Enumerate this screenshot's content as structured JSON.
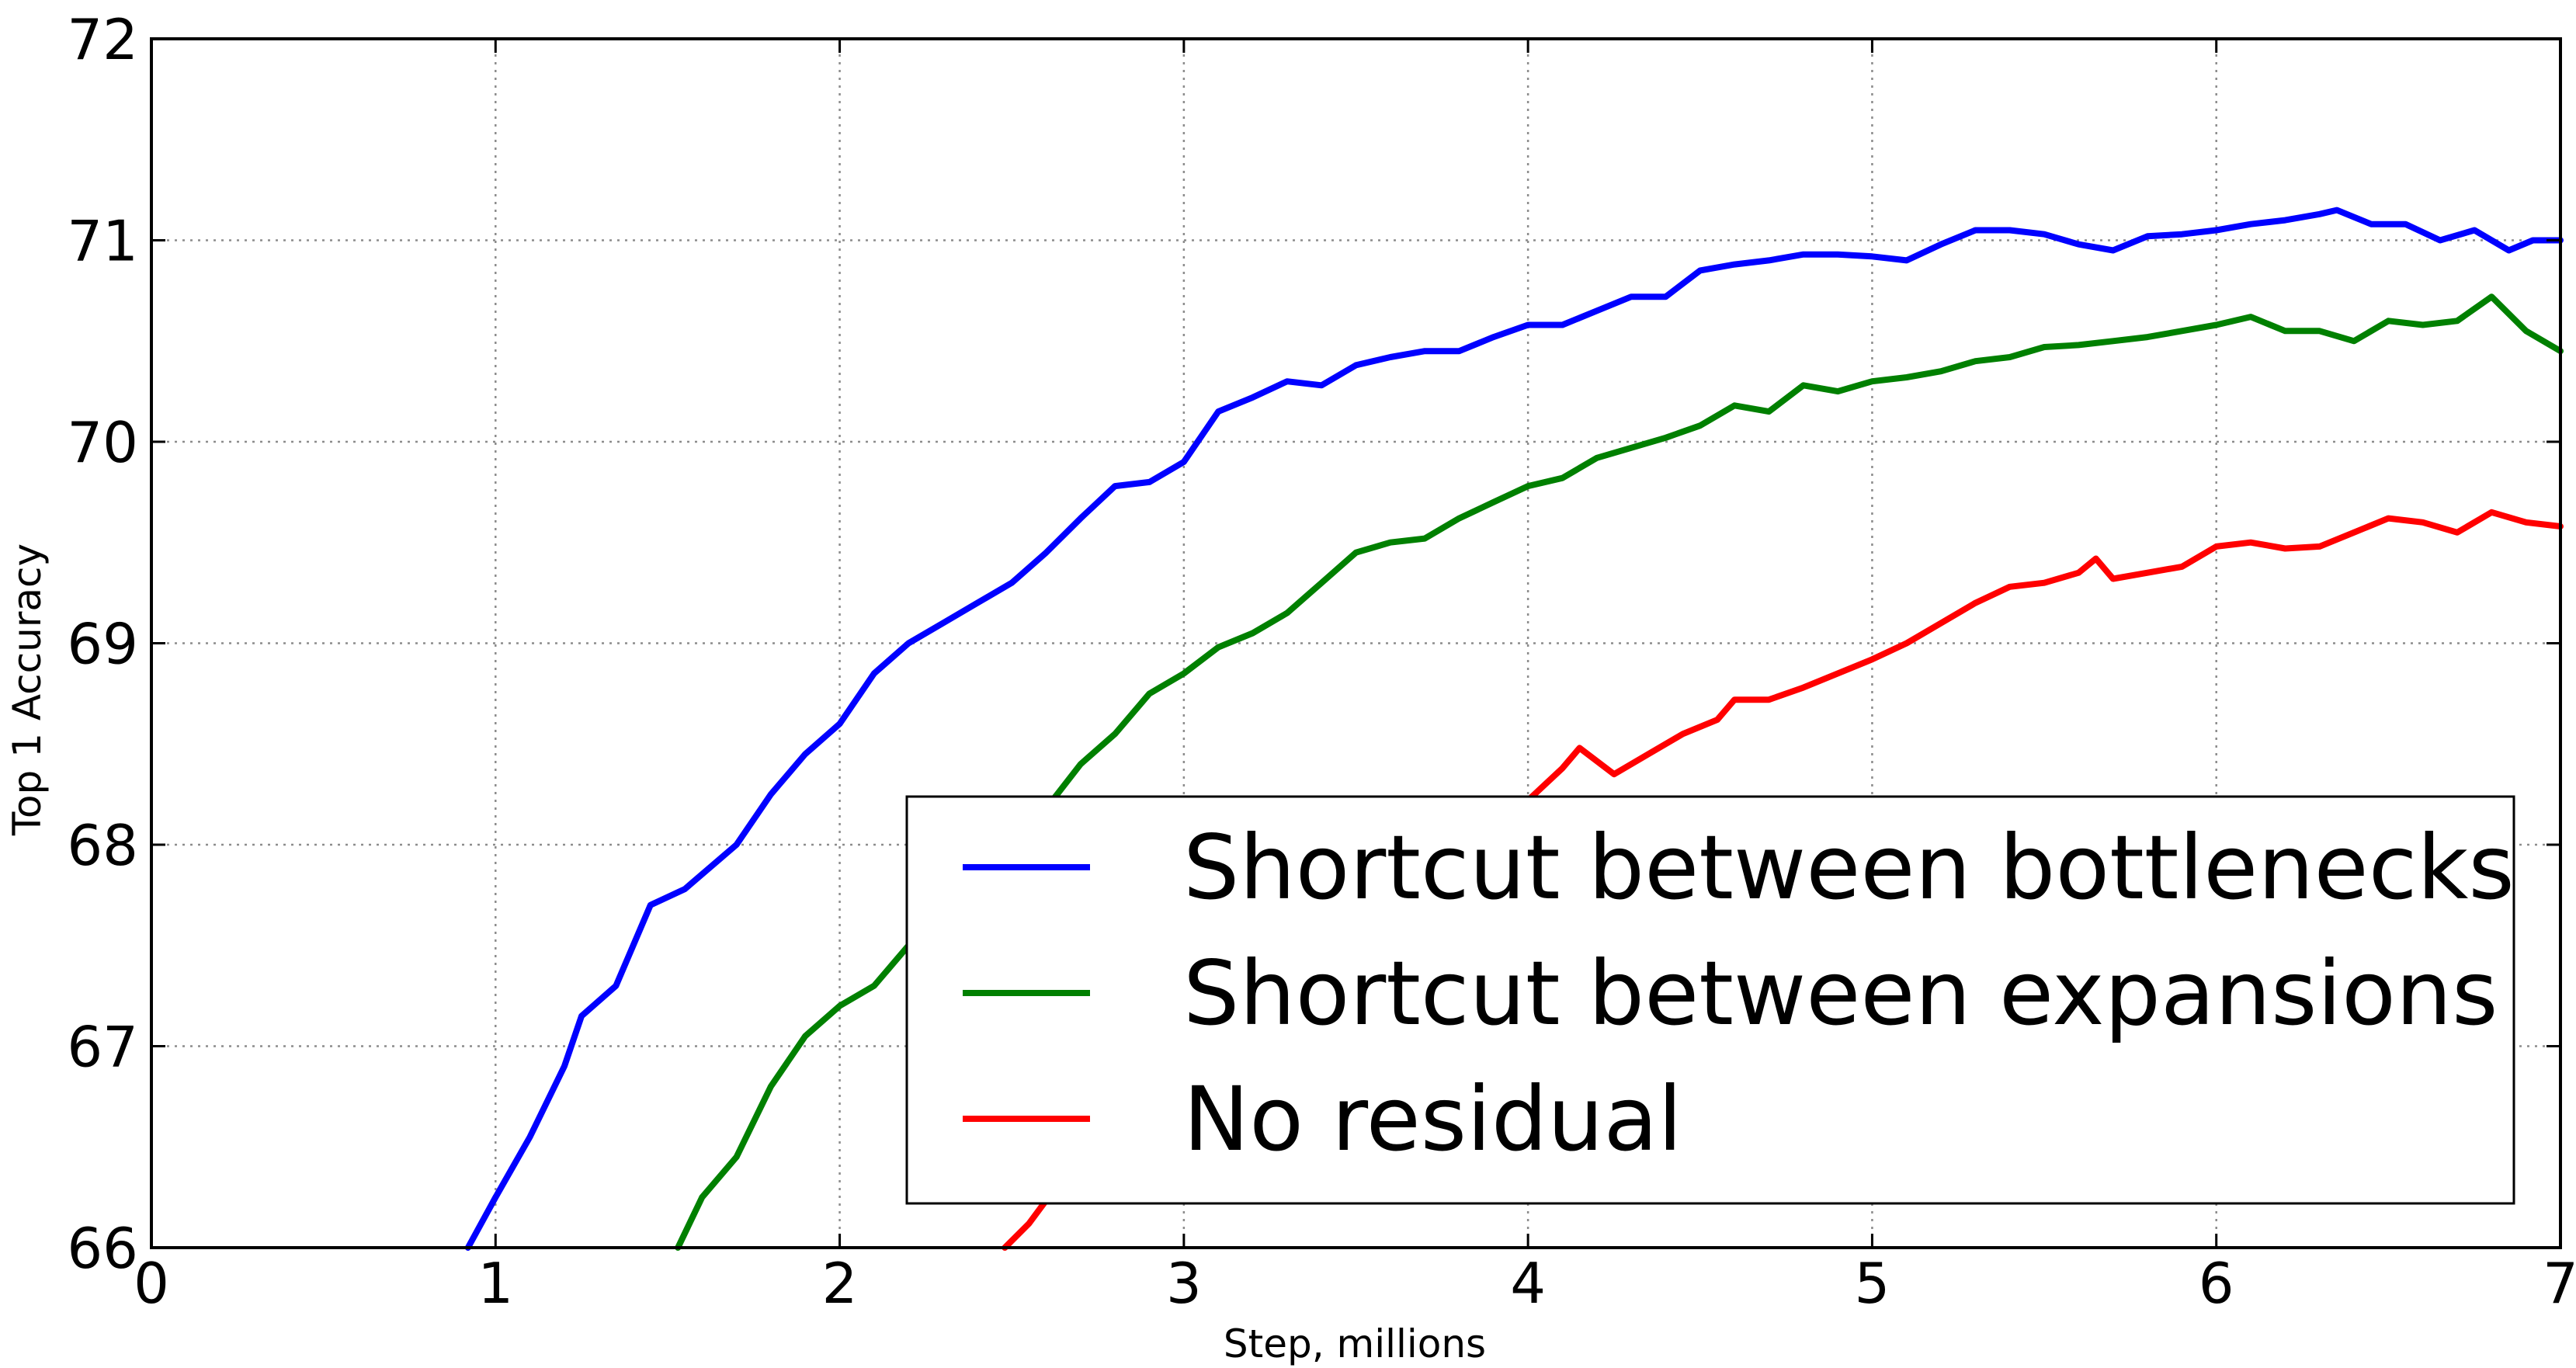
{
  "chart_data": {
    "type": "line",
    "title": "",
    "xlabel": "Step, millions",
    "ylabel": "Top 1 Accuracy",
    "xlim": [
      0,
      7
    ],
    "ylim": [
      66,
      72
    ],
    "xticks": [
      "0",
      "1",
      "2",
      "3",
      "4",
      "5",
      "6",
      "7"
    ],
    "yticks": [
      "66",
      "67",
      "68",
      "69",
      "70",
      "71",
      "72"
    ],
    "grid": true,
    "legend_position": "lower-right",
    "series": [
      {
        "name": "Shortcut between bottlenecks",
        "color": "#0000ff",
        "points": [
          [
            0.92,
            66.0
          ],
          [
            1.0,
            66.25
          ],
          [
            1.1,
            66.55
          ],
          [
            1.2,
            66.9
          ],
          [
            1.25,
            67.15
          ],
          [
            1.35,
            67.3
          ],
          [
            1.45,
            67.7
          ],
          [
            1.55,
            67.78
          ],
          [
            1.7,
            68.0
          ],
          [
            1.8,
            68.25
          ],
          [
            1.9,
            68.45
          ],
          [
            2.0,
            68.6
          ],
          [
            2.1,
            68.85
          ],
          [
            2.2,
            69.0
          ],
          [
            2.3,
            69.1
          ],
          [
            2.4,
            69.2
          ],
          [
            2.5,
            69.3
          ],
          [
            2.6,
            69.45
          ],
          [
            2.7,
            69.62
          ],
          [
            2.8,
            69.78
          ],
          [
            2.9,
            69.8
          ],
          [
            3.0,
            69.9
          ],
          [
            3.1,
            70.15
          ],
          [
            3.2,
            70.22
          ],
          [
            3.3,
            70.3
          ],
          [
            3.4,
            70.28
          ],
          [
            3.5,
            70.38
          ],
          [
            3.6,
            70.42
          ],
          [
            3.7,
            70.45
          ],
          [
            3.8,
            70.45
          ],
          [
            3.9,
            70.52
          ],
          [
            4.0,
            70.58
          ],
          [
            4.1,
            70.58
          ],
          [
            4.2,
            70.65
          ],
          [
            4.3,
            70.72
          ],
          [
            4.4,
            70.72
          ],
          [
            4.5,
            70.85
          ],
          [
            4.6,
            70.88
          ],
          [
            4.7,
            70.9
          ],
          [
            4.8,
            70.93
          ],
          [
            4.9,
            70.93
          ],
          [
            5.0,
            70.92
          ],
          [
            5.1,
            70.9
          ],
          [
            5.2,
            70.98
          ],
          [
            5.3,
            71.05
          ],
          [
            5.4,
            71.05
          ],
          [
            5.5,
            71.03
          ],
          [
            5.6,
            70.98
          ],
          [
            5.7,
            70.95
          ],
          [
            5.8,
            71.02
          ],
          [
            5.9,
            71.03
          ],
          [
            6.0,
            71.05
          ],
          [
            6.1,
            71.08
          ],
          [
            6.2,
            71.1
          ],
          [
            6.3,
            71.13
          ],
          [
            6.35,
            71.15
          ],
          [
            6.45,
            71.08
          ],
          [
            6.55,
            71.08
          ],
          [
            6.65,
            71.0
          ],
          [
            6.75,
            71.05
          ],
          [
            6.85,
            70.95
          ],
          [
            6.92,
            71.0
          ],
          [
            7.0,
            71.0
          ]
        ]
      },
      {
        "name": "Shortcut between expansions",
        "color": "#008000",
        "points": [
          [
            1.53,
            66.0
          ],
          [
            1.6,
            66.25
          ],
          [
            1.7,
            66.45
          ],
          [
            1.8,
            66.8
          ],
          [
            1.9,
            67.05
          ],
          [
            2.0,
            67.2
          ],
          [
            2.1,
            67.3
          ],
          [
            2.2,
            67.5
          ],
          [
            2.3,
            67.75
          ],
          [
            2.4,
            67.88
          ],
          [
            2.5,
            68.0
          ],
          [
            2.6,
            68.18
          ],
          [
            2.7,
            68.4
          ],
          [
            2.8,
            68.55
          ],
          [
            2.9,
            68.75
          ],
          [
            3.0,
            68.85
          ],
          [
            3.1,
            68.98
          ],
          [
            3.2,
            69.05
          ],
          [
            3.3,
            69.15
          ],
          [
            3.4,
            69.3
          ],
          [
            3.5,
            69.45
          ],
          [
            3.6,
            69.5
          ],
          [
            3.7,
            69.52
          ],
          [
            3.8,
            69.62
          ],
          [
            3.9,
            69.7
          ],
          [
            4.0,
            69.78
          ],
          [
            4.1,
            69.82
          ],
          [
            4.2,
            69.92
          ],
          [
            4.3,
            69.97
          ],
          [
            4.4,
            70.02
          ],
          [
            4.5,
            70.08
          ],
          [
            4.6,
            70.18
          ],
          [
            4.7,
            70.15
          ],
          [
            4.8,
            70.28
          ],
          [
            4.9,
            70.25
          ],
          [
            5.0,
            70.3
          ],
          [
            5.1,
            70.32
          ],
          [
            5.2,
            70.35
          ],
          [
            5.3,
            70.4
          ],
          [
            5.4,
            70.42
          ],
          [
            5.5,
            70.47
          ],
          [
            5.6,
            70.48
          ],
          [
            5.7,
            70.5
          ],
          [
            5.8,
            70.52
          ],
          [
            5.9,
            70.55
          ],
          [
            6.0,
            70.58
          ],
          [
            6.1,
            70.62
          ],
          [
            6.2,
            70.55
          ],
          [
            6.3,
            70.55
          ],
          [
            6.4,
            70.5
          ],
          [
            6.5,
            70.6
          ],
          [
            6.6,
            70.58
          ],
          [
            6.7,
            70.6
          ],
          [
            6.8,
            70.72
          ],
          [
            6.9,
            70.55
          ],
          [
            7.0,
            70.45
          ]
        ]
      },
      {
        "name": "No residual",
        "color": "#ff0000",
        "points": [
          [
            2.48,
            66.0
          ],
          [
            2.55,
            66.12
          ],
          [
            2.65,
            66.35
          ],
          [
            2.75,
            66.55
          ],
          [
            2.85,
            66.75
          ],
          [
            2.95,
            66.95
          ],
          [
            3.1,
            67.2
          ],
          [
            3.3,
            67.5
          ],
          [
            3.5,
            67.75
          ],
          [
            3.7,
            67.95
          ],
          [
            3.9,
            68.15
          ],
          [
            4.0,
            68.22
          ],
          [
            4.1,
            68.38
          ],
          [
            4.15,
            68.48
          ],
          [
            4.25,
            68.35
          ],
          [
            4.35,
            68.45
          ],
          [
            4.45,
            68.55
          ],
          [
            4.55,
            68.62
          ],
          [
            4.6,
            68.72
          ],
          [
            4.7,
            68.72
          ],
          [
            4.8,
            68.78
          ],
          [
            4.9,
            68.85
          ],
          [
            5.0,
            68.92
          ],
          [
            5.1,
            69.0
          ],
          [
            5.2,
            69.1
          ],
          [
            5.3,
            69.2
          ],
          [
            5.4,
            69.28
          ],
          [
            5.5,
            69.3
          ],
          [
            5.6,
            69.35
          ],
          [
            5.65,
            69.42
          ],
          [
            5.7,
            69.32
          ],
          [
            5.8,
            69.35
          ],
          [
            5.9,
            69.38
          ],
          [
            6.0,
            69.48
          ],
          [
            6.1,
            69.5
          ],
          [
            6.2,
            69.47
          ],
          [
            6.3,
            69.48
          ],
          [
            6.4,
            69.55
          ],
          [
            6.5,
            69.62
          ],
          [
            6.6,
            69.6
          ],
          [
            6.7,
            69.55
          ],
          [
            6.8,
            69.65
          ],
          [
            6.9,
            69.6
          ],
          [
            7.0,
            69.58
          ]
        ]
      }
    ]
  }
}
